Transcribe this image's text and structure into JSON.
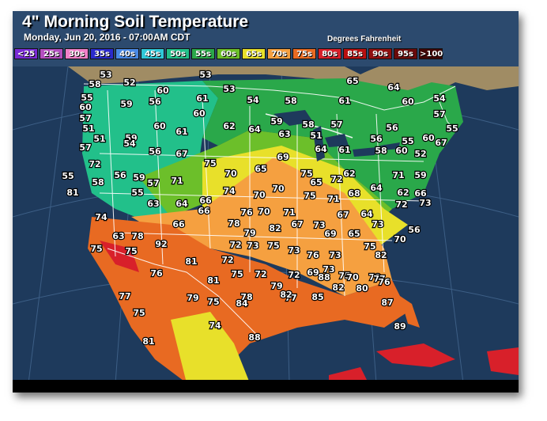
{
  "header": {
    "title": "4\" Morning Soil Temperature",
    "subtitle": "Monday, Jun 20, 2016 - 07:00AM CDT",
    "units": "Degrees Fahrenheit"
  },
  "legend": [
    {
      "label": "<25",
      "color": "#7a2bd6"
    },
    {
      "label": "25s",
      "color": "#b44fc0"
    },
    {
      "label": "30s",
      "color": "#f080c8"
    },
    {
      "label": "35s",
      "color": "#2b2bcc"
    },
    {
      "label": "40s",
      "color": "#4a8ae6"
    },
    {
      "label": "45s",
      "color": "#30c8d8"
    },
    {
      "label": "50s",
      "color": "#22c08a"
    },
    {
      "label": "55s",
      "color": "#2aa84a"
    },
    {
      "label": "60s",
      "color": "#6cbf2a"
    },
    {
      "label": "65s",
      "color": "#e8e02a"
    },
    {
      "label": "70s",
      "color": "#f5a040"
    },
    {
      "label": "75s",
      "color": "#e86a22"
    },
    {
      "label": "80s",
      "color": "#d8202a"
    },
    {
      "label": "85s",
      "color": "#b81010"
    },
    {
      "label": "90s",
      "color": "#901010"
    },
    {
      "label": "95s",
      "color": "#6a0a0a"
    },
    {
      "label": ">100",
      "color": "#400505"
    }
  ],
  "colors": {
    "ocean": "#1e3a5c",
    "land_unknown": "#a08c64",
    "border": "#ffffff"
  },
  "readings": [
    {
      "value": "53"
    },
    {
      "value": "52"
    },
    {
      "value": "53"
    },
    {
      "value": "53"
    },
    {
      "value": "65"
    },
    {
      "value": "64"
    },
    {
      "value": "58"
    },
    {
      "value": "55"
    },
    {
      "value": "60"
    },
    {
      "value": "61"
    },
    {
      "value": "54"
    },
    {
      "value": "58"
    },
    {
      "value": "61"
    },
    {
      "value": "60"
    },
    {
      "value": "60"
    },
    {
      "value": "59"
    },
    {
      "value": "56"
    },
    {
      "value": "54"
    },
    {
      "value": "57"
    },
    {
      "value": "60"
    },
    {
      "value": "59"
    },
    {
      "value": "58"
    },
    {
      "value": "57"
    },
    {
      "value": "56"
    },
    {
      "value": "57"
    },
    {
      "value": "55"
    },
    {
      "value": "51"
    },
    {
      "value": "51"
    },
    {
      "value": "59"
    },
    {
      "value": "60"
    },
    {
      "value": "61"
    },
    {
      "value": "62"
    },
    {
      "value": "64"
    },
    {
      "value": "63"
    },
    {
      "value": "51"
    },
    {
      "value": "56"
    },
    {
      "value": "55"
    },
    {
      "value": "60"
    },
    {
      "value": "57"
    },
    {
      "value": "54"
    },
    {
      "value": "56"
    },
    {
      "value": "67"
    },
    {
      "value": "69"
    },
    {
      "value": "64"
    },
    {
      "value": "61"
    },
    {
      "value": "58"
    },
    {
      "value": "60"
    },
    {
      "value": "52"
    },
    {
      "value": "67"
    },
    {
      "value": "72"
    },
    {
      "value": "75"
    },
    {
      "value": "70"
    },
    {
      "value": "65"
    },
    {
      "value": "75"
    },
    {
      "value": "65"
    },
    {
      "value": "72"
    },
    {
      "value": "62"
    },
    {
      "value": "71"
    },
    {
      "value": "59"
    },
    {
      "value": "55"
    },
    {
      "value": "58"
    },
    {
      "value": "56"
    },
    {
      "value": "59"
    },
    {
      "value": "57"
    },
    {
      "value": "71"
    },
    {
      "value": "74"
    },
    {
      "value": "70"
    },
    {
      "value": "70"
    },
    {
      "value": "75"
    },
    {
      "value": "71"
    },
    {
      "value": "68"
    },
    {
      "value": "64"
    },
    {
      "value": "62"
    },
    {
      "value": "66"
    },
    {
      "value": "81"
    },
    {
      "value": "55"
    },
    {
      "value": "63"
    },
    {
      "value": "64"
    },
    {
      "value": "66"
    },
    {
      "value": "66"
    },
    {
      "value": "76"
    },
    {
      "value": "70"
    },
    {
      "value": "71"
    },
    {
      "value": "67"
    },
    {
      "value": "64"
    },
    {
      "value": "72"
    },
    {
      "value": "73"
    },
    {
      "value": "78"
    },
    {
      "value": "66"
    },
    {
      "value": "73"
    },
    {
      "value": "74"
    },
    {
      "value": "72"
    },
    {
      "value": "79"
    },
    {
      "value": "82"
    },
    {
      "value": "67"
    },
    {
      "value": "69"
    },
    {
      "value": "65"
    },
    {
      "value": "75"
    },
    {
      "value": "73"
    },
    {
      "value": "70"
    },
    {
      "value": "56"
    },
    {
      "value": "63"
    },
    {
      "value": "78"
    },
    {
      "value": "92"
    },
    {
      "value": "73"
    },
    {
      "value": "75"
    },
    {
      "value": "73"
    },
    {
      "value": "76"
    },
    {
      "value": "73"
    },
    {
      "value": "82"
    },
    {
      "value": "75"
    },
    {
      "value": "75"
    },
    {
      "value": "81"
    },
    {
      "value": "72"
    },
    {
      "value": "69"
    },
    {
      "value": "73"
    },
    {
      "value": "75"
    },
    {
      "value": "78"
    },
    {
      "value": "76"
    },
    {
      "value": "81"
    },
    {
      "value": "75"
    },
    {
      "value": "72"
    },
    {
      "value": "72"
    },
    {
      "value": "88"
    },
    {
      "value": "70"
    },
    {
      "value": "77"
    },
    {
      "value": "77"
    },
    {
      "value": "79"
    },
    {
      "value": "75"
    },
    {
      "value": "78"
    },
    {
      "value": "79"
    },
    {
      "value": "77"
    },
    {
      "value": "85"
    },
    {
      "value": "82"
    },
    {
      "value": "80"
    },
    {
      "value": "76"
    },
    {
      "value": "75"
    },
    {
      "value": "84"
    },
    {
      "value": "82"
    },
    {
      "value": "87"
    },
    {
      "value": "74"
    },
    {
      "value": "88"
    },
    {
      "value": "89"
    },
    {
      "value": "81"
    }
  ]
}
